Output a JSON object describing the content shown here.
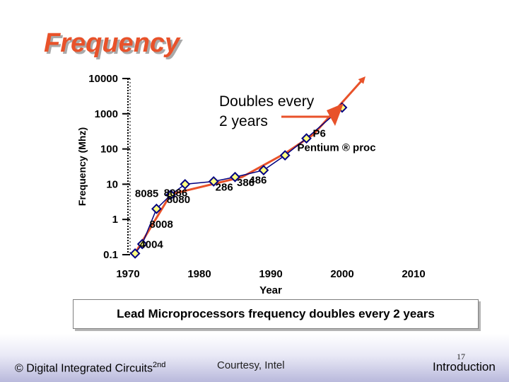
{
  "slide": {
    "title": "Frequency",
    "caption": "Lead Microprocessors frequency doubles every 2 years"
  },
  "footer": {
    "left_text": "© Digital Integrated Circuits",
    "left_superscript": "2nd",
    "middle_text": "Courtesy, Intel",
    "page_number": "17",
    "right_text": "Introduction"
  },
  "chart_data": {
    "type": "line",
    "title": "",
    "xlabel": "Year",
    "ylabel": "Frequency (Mhz)",
    "x_scale": "linear",
    "y_scale": "log",
    "xlim": [
      1970,
      2010
    ],
    "ylim": [
      0.1,
      10000
    ],
    "x_ticks": [
      1970,
      1980,
      1990,
      2000,
      2010
    ],
    "x_tick_labels": [
      "1970",
      "1980",
      "1990",
      "2000",
      "2010"
    ],
    "y_ticks": [
      0.1,
      1,
      10,
      100,
      1000,
      10000
    ],
    "y_tick_labels": [
      "0.1",
      "1",
      "10",
      "100",
      "1000",
      "10000"
    ],
    "grid": false,
    "series": [
      {
        "name": "",
        "color": "#000080",
        "marker": "diamond",
        "marker_fill": "#ffff80",
        "points": [
          {
            "x": 1971,
            "y": 0.108
          },
          {
            "x": 1972,
            "y": 0.2
          },
          {
            "x": 1974,
            "y": 2
          },
          {
            "x": 1976,
            "y": 5
          },
          {
            "x": 1978,
            "y": 10
          },
          {
            "x": 1982,
            "y": 12
          },
          {
            "x": 1985,
            "y": 16
          },
          {
            "x": 1989,
            "y": 25
          },
          {
            "x": 1992,
            "y": 66
          },
          {
            "x": 1995,
            "y": 200
          },
          {
            "x": 2000,
            "y": 1500
          }
        ]
      }
    ],
    "trend_line": {
      "color": "#e8522a",
      "points": [
        {
          "x": 1971,
          "y": 0.11
        },
        {
          "x": 1976,
          "y": 5.2
        },
        {
          "x": 1986,
          "y": 16
        },
        {
          "x": 1992,
          "y": 75
        },
        {
          "x": 1996,
          "y": 260
        },
        {
          "x": 2003,
          "y": 10000
        }
      ]
    },
    "point_labels": [
      {
        "text": "4004",
        "x": 1971,
        "y": 0.108
      },
      {
        "text": "8008",
        "x": 1972,
        "y": 0.2
      },
      {
        "text": "8080",
        "x": 1974,
        "y": 2
      },
      {
        "text": "8085",
        "x": 1976,
        "y": 5
      },
      {
        "text": "8086",
        "x": 1978,
        "y": 10
      },
      {
        "text": "286",
        "x": 1982,
        "y": 12
      },
      {
        "text": "386",
        "x": 1985,
        "y": 16
      },
      {
        "text": "486",
        "x": 1989,
        "y": 25
      },
      {
        "text": "P6",
        "x": 1995,
        "y": 200
      },
      {
        "text": "Pentium ® proc",
        "x": 1995,
        "y": 200
      }
    ],
    "annotation": {
      "lines": [
        "Doubles every",
        "2 years"
      ]
    }
  }
}
